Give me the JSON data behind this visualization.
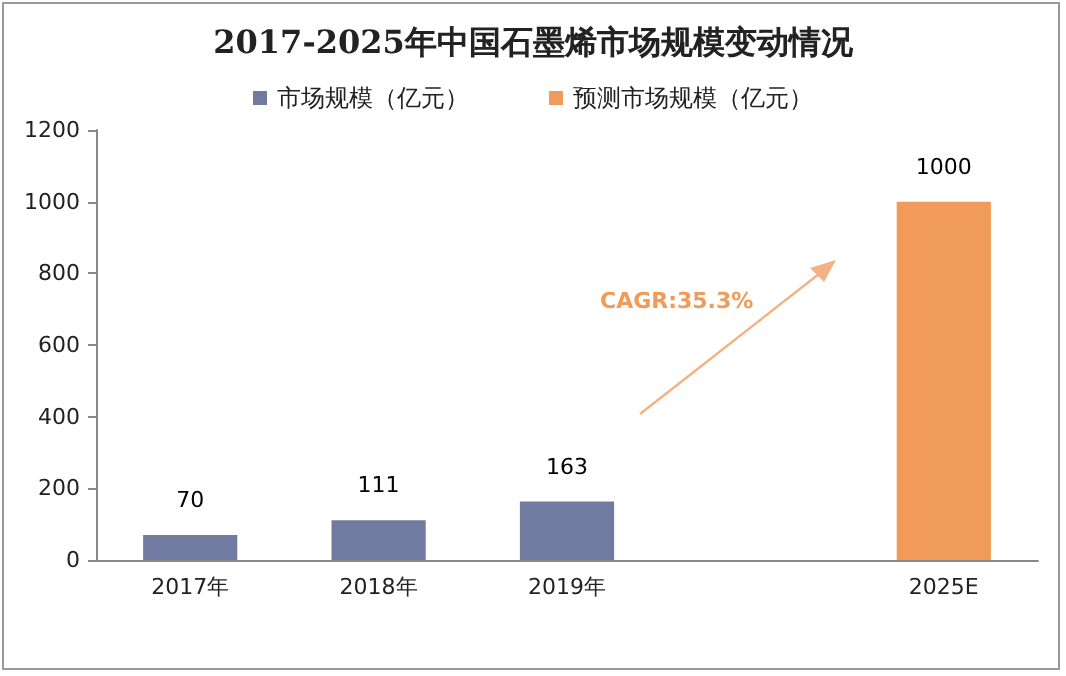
{
  "chart_data": {
    "type": "bar",
    "title": "2017-2025年中国石墨烯市场规模变动情况",
    "categories": [
      "2017年",
      "2018年",
      "2019年",
      null,
      "2025E"
    ],
    "series": [
      {
        "name": "市场规模（亿元）",
        "color": "#717aa0",
        "values": [
          70,
          111,
          163,
          null,
          null
        ]
      },
      {
        "name": "预测市场规模（亿元）",
        "color": "#f09b59",
        "values": [
          null,
          null,
          null,
          null,
          1000
        ]
      }
    ],
    "ylim": [
      0,
      1200
    ],
    "yticks": [
      0,
      200,
      400,
      600,
      800,
      1000,
      1200
    ],
    "grid": false,
    "legend": "top",
    "data_labels": true,
    "annotations": [
      "CAGR:35.3%"
    ]
  }
}
